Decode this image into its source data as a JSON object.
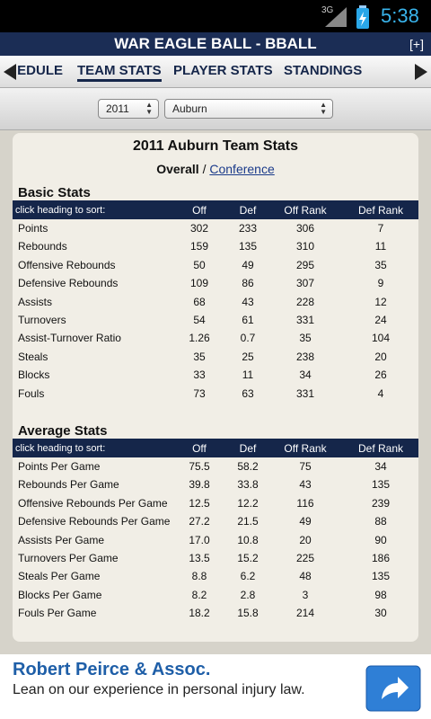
{
  "status_bar": {
    "network": "3G",
    "time": "5:38"
  },
  "header": {
    "title": "WAR EAGLE BALL - BBALL",
    "action": "[+]"
  },
  "tabs": [
    "SCHEDULE",
    "TEAM STATS",
    "PLAYER STATS",
    "STANDINGS"
  ],
  "filters": {
    "year": "2011",
    "team": "Auburn"
  },
  "content": {
    "title": "2011 Auburn Team Stats",
    "view": "Overall",
    "separator": "/",
    "alt_view": "Conference"
  },
  "sections": [
    {
      "title": "Basic Stats",
      "columns": [
        "click heading to sort:",
        "Off",
        "Def",
        "Off Rank",
        "Def Rank"
      ],
      "rows": [
        [
          "Points",
          "302",
          "233",
          "306",
          "7"
        ],
        [
          "Rebounds",
          "159",
          "135",
          "310",
          "11"
        ],
        [
          "Offensive Rebounds",
          "50",
          "49",
          "295",
          "35"
        ],
        [
          "Defensive Rebounds",
          "109",
          "86",
          "307",
          "9"
        ],
        [
          "Assists",
          "68",
          "43",
          "228",
          "12"
        ],
        [
          "Turnovers",
          "54",
          "61",
          "331",
          "24"
        ],
        [
          "Assist-Turnover Ratio",
          "1.26",
          "0.7",
          "35",
          "104"
        ],
        [
          "Steals",
          "35",
          "25",
          "238",
          "20"
        ],
        [
          "Blocks",
          "33",
          "11",
          "34",
          "26"
        ],
        [
          "Fouls",
          "73",
          "63",
          "331",
          "4"
        ]
      ]
    },
    {
      "title": "Average Stats",
      "columns": [
        "click heading to sort:",
        "Off",
        "Def",
        "Off Rank",
        "Def Rank"
      ],
      "rows": [
        [
          "Points Per Game",
          "75.5",
          "58.2",
          "75",
          "34"
        ],
        [
          "Rebounds Per Game",
          "39.8",
          "33.8",
          "43",
          "135"
        ],
        [
          "Offensive Rebounds Per Game",
          "12.5",
          "12.2",
          "116",
          "239"
        ],
        [
          "Defensive Rebounds Per Game",
          "27.2",
          "21.5",
          "49",
          "88"
        ],
        [
          "Assists Per Game",
          "17.0",
          "10.8",
          "20",
          "90"
        ],
        [
          "Turnovers Per Game",
          "13.5",
          "15.2",
          "225",
          "186"
        ],
        [
          "Steals Per Game",
          "8.8",
          "6.2",
          "48",
          "135"
        ],
        [
          "Blocks Per Game",
          "8.2",
          "2.8",
          "3",
          "98"
        ],
        [
          "Fouls Per Game",
          "18.2",
          "15.8",
          "214",
          "30"
        ]
      ]
    }
  ],
  "ad": {
    "title": "Robert Peirce & Assoc.",
    "text": "Lean on our experience in personal injury law."
  }
}
